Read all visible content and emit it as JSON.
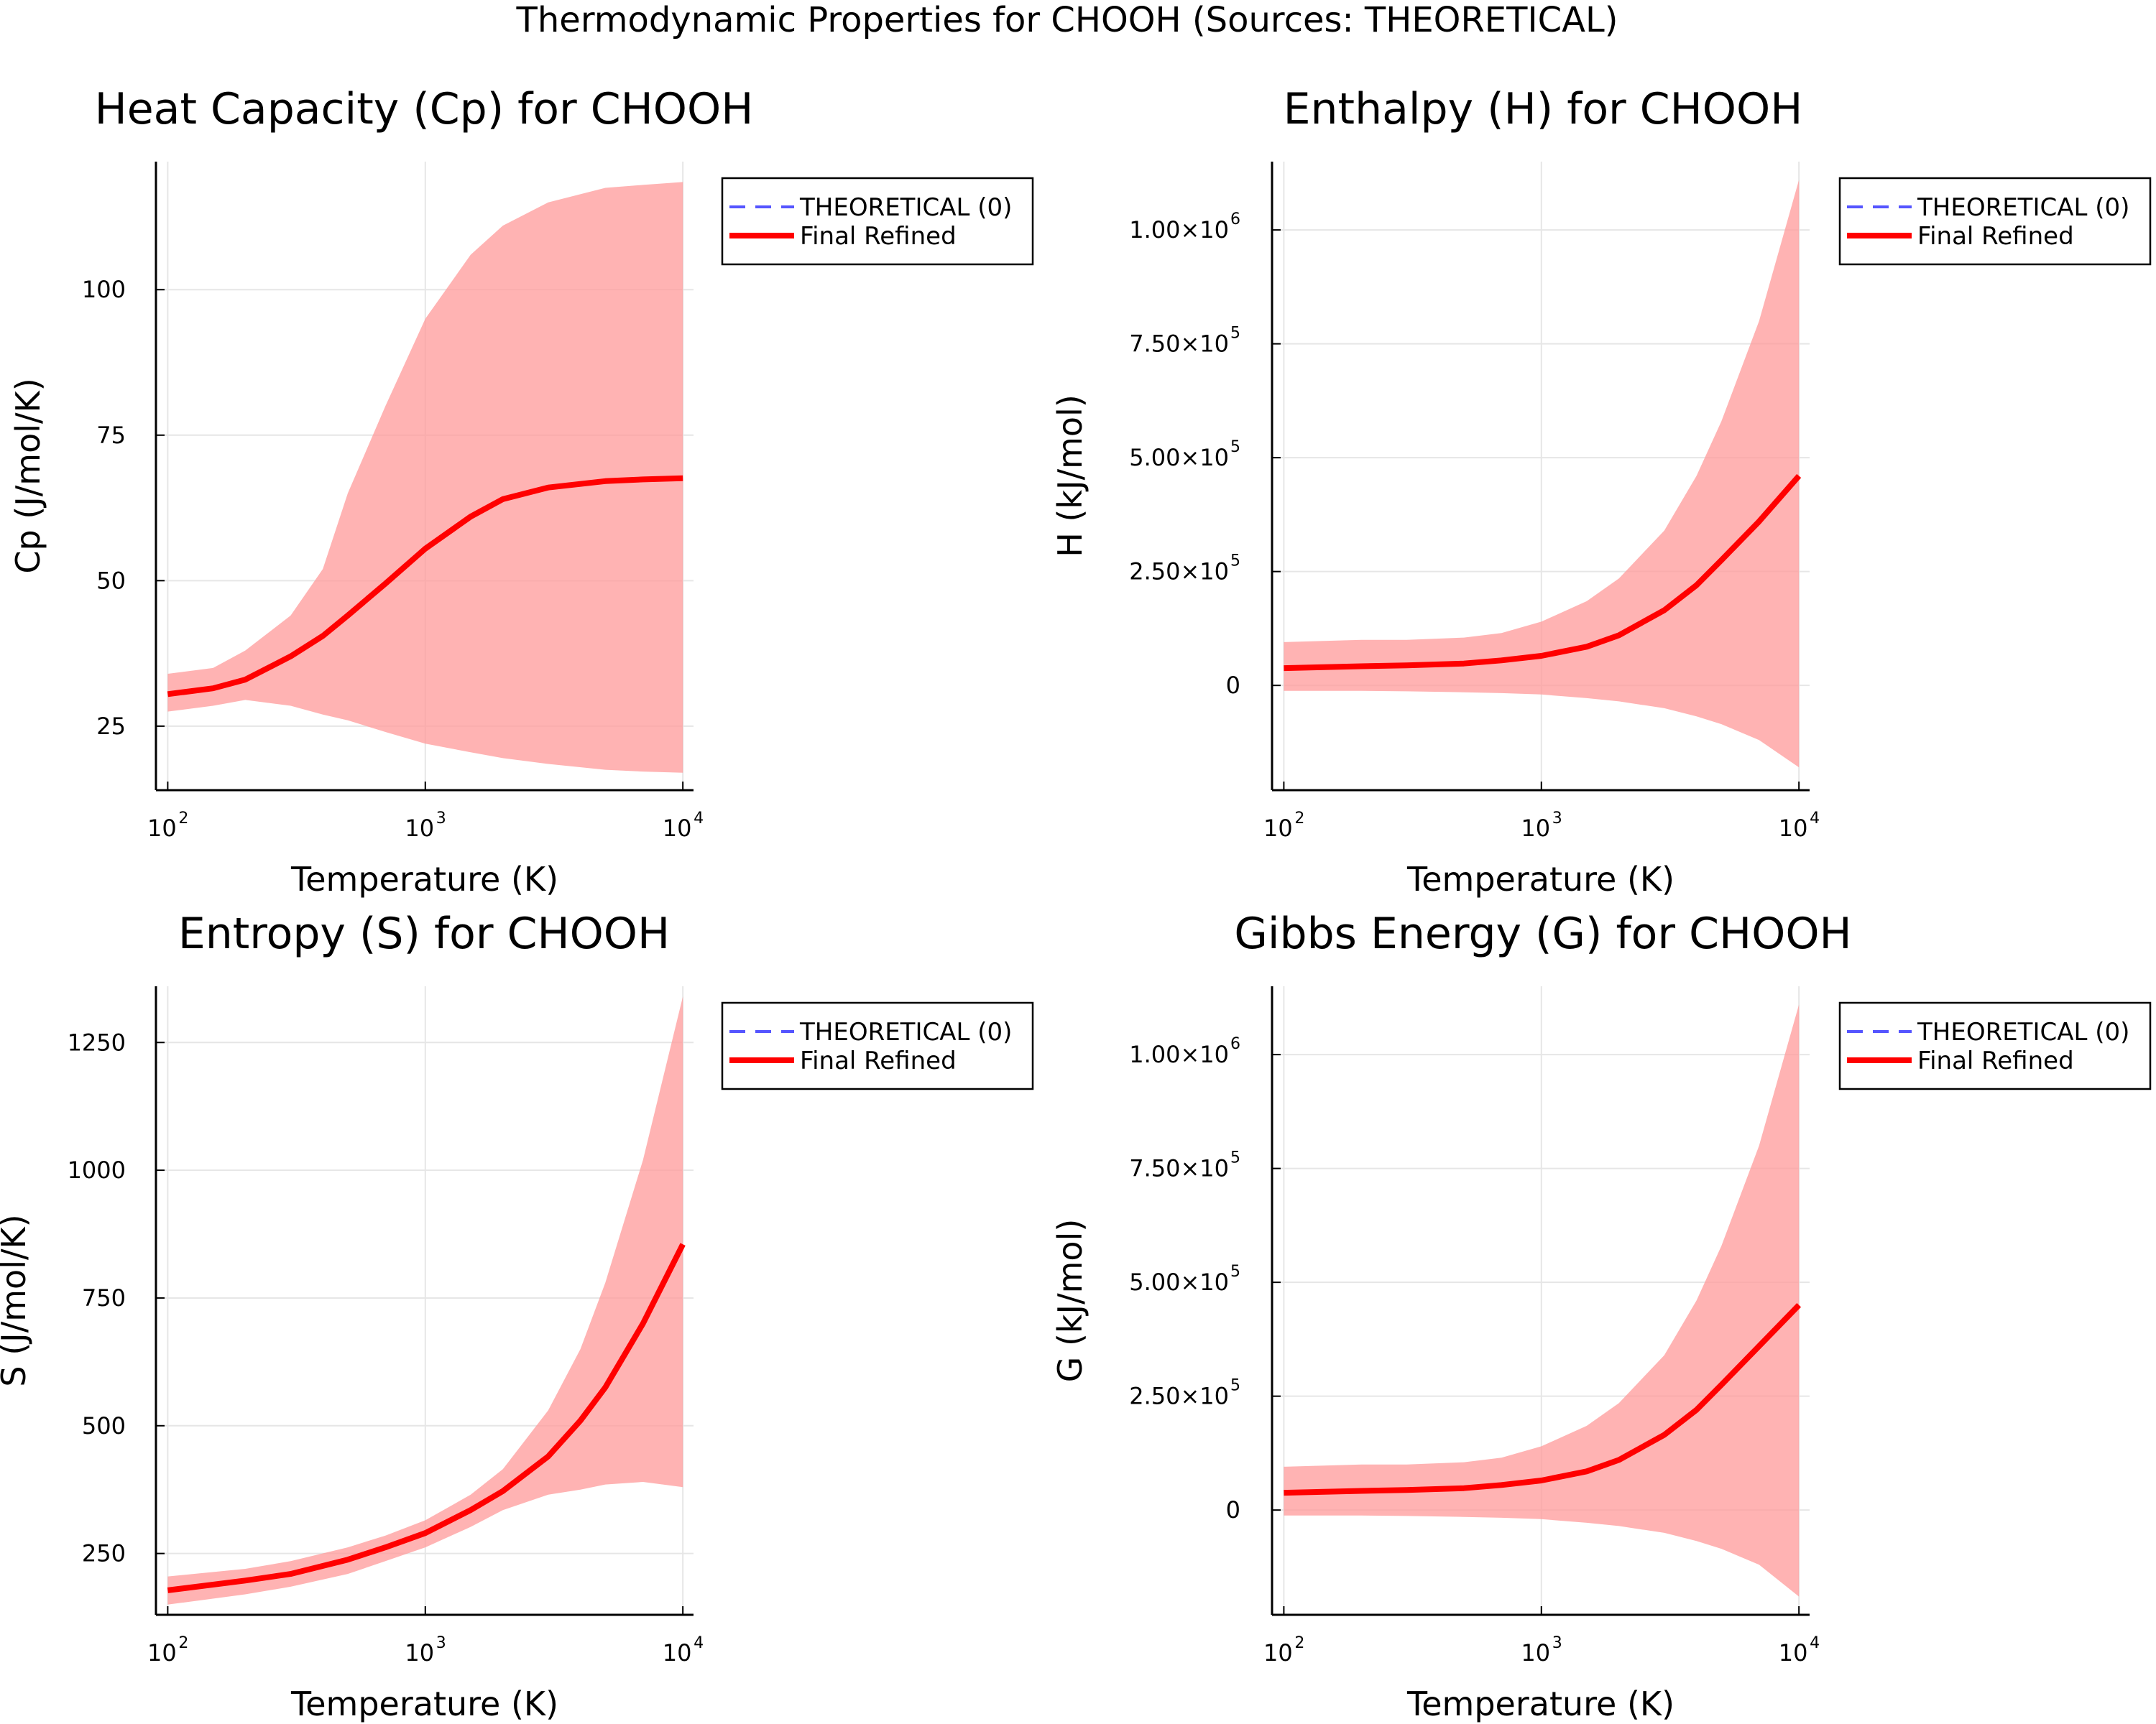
{
  "figure": {
    "suptitle": "Thermodynamic Properties for CHOOH (Sources: THEORETICAL)"
  },
  "colors": {
    "refined": "#ff0000",
    "band": "#ff9999",
    "theoretical": "#5555ff"
  },
  "chart_data": [
    {
      "type": "line",
      "title": "Heat Capacity (Cp) for CHOOH",
      "xlabel": "Temperature (K)",
      "ylabel": "Cp (J/mol/K)",
      "xscale": "log",
      "xlim": [
        90,
        11000
      ],
      "ylim": [
        14,
        122
      ],
      "xticks": [
        {
          "base": "10",
          "exp": "2",
          "value": 100
        },
        {
          "base": "10",
          "exp": "3",
          "value": 1000
        },
        {
          "base": "10",
          "exp": "4",
          "value": 10000
        }
      ],
      "yticks": [
        {
          "label": "25",
          "value": 25
        },
        {
          "label": "50",
          "value": 50
        },
        {
          "label": "75",
          "value": 75
        },
        {
          "label": "100",
          "value": 100
        }
      ],
      "grid": true,
      "legend_position": "outside-top-right",
      "legend": [
        {
          "name": "THEORETICAL (0)",
          "style": "dashed"
        },
        {
          "name": "Final Refined",
          "style": "solid"
        }
      ],
      "series": [
        {
          "name": "Final Refined",
          "x": [
            100,
            150,
            200,
            300,
            400,
            500,
            700,
            1000,
            1500,
            2000,
            3000,
            5000,
            7000,
            10000
          ],
          "y": [
            30.5,
            31.5,
            33,
            37,
            40.5,
            44,
            49.5,
            55.5,
            61,
            64,
            66,
            67.1,
            67.4,
            67.6
          ]
        },
        {
          "name": "band_upper",
          "x": [
            100,
            150,
            200,
            300,
            400,
            500,
            700,
            1000,
            1500,
            2000,
            3000,
            5000,
            7000,
            10000
          ],
          "y": [
            34,
            35,
            38,
            44,
            52,
            65,
            80,
            95,
            106,
            111,
            115,
            117.5,
            118,
            118.5
          ]
        },
        {
          "name": "band_lower",
          "x": [
            100,
            150,
            200,
            300,
            400,
            500,
            700,
            1000,
            1500,
            2000,
            3000,
            5000,
            7000,
            10000
          ],
          "y": [
            27.5,
            28.5,
            29.5,
            28.5,
            27,
            26,
            24,
            22,
            20.5,
            19.5,
            18.5,
            17.5,
            17.2,
            17
          ]
        }
      ]
    },
    {
      "type": "line",
      "title": "Enthalpy (H) for CHOOH",
      "xlabel": "Temperature (K)",
      "ylabel": "H (kJ/mol)",
      "xscale": "log",
      "xlim": [
        90,
        11000
      ],
      "ylim": [
        -230000,
        1150000
      ],
      "xticks": [
        {
          "base": "10",
          "exp": "2",
          "value": 100
        },
        {
          "base": "10",
          "exp": "3",
          "value": 1000
        },
        {
          "base": "10",
          "exp": "4",
          "value": 10000
        }
      ],
      "yticks": [
        {
          "label": "0",
          "value": 0
        },
        {
          "label": "2.50×10",
          "exp": "5",
          "value": 250000
        },
        {
          "label": "5.00×10",
          "exp": "5",
          "value": 500000
        },
        {
          "label": "7.50×10",
          "exp": "5",
          "value": 750000
        },
        {
          "label": "1.00×10",
          "exp": "6",
          "value": 1000000
        }
      ],
      "grid": true,
      "legend_position": "outside-top-right",
      "legend": [
        {
          "name": "THEORETICAL (0)",
          "style": "dashed"
        },
        {
          "name": "Final Refined",
          "style": "solid"
        }
      ],
      "series": [
        {
          "name": "Final Refined",
          "x": [
            100,
            200,
            300,
            500,
            700,
            1000,
            1500,
            2000,
            3000,
            4000,
            5000,
            7000,
            10000
          ],
          "y": [
            38000,
            42000,
            44000,
            48000,
            55000,
            65000,
            85000,
            110000,
            165000,
            220000,
            275000,
            360000,
            460000
          ]
        },
        {
          "name": "band_upper",
          "x": [
            100,
            200,
            300,
            500,
            700,
            1000,
            1500,
            2000,
            3000,
            4000,
            5000,
            7000,
            10000
          ],
          "y": [
            95000,
            100000,
            100000,
            105000,
            115000,
            140000,
            185000,
            235000,
            340000,
            460000,
            580000,
            800000,
            1110000
          ]
        },
        {
          "name": "band_lower",
          "x": [
            100,
            200,
            300,
            500,
            700,
            1000,
            1500,
            2000,
            3000,
            4000,
            5000,
            7000,
            10000
          ],
          "y": [
            -12000,
            -12000,
            -13000,
            -15000,
            -17000,
            -20000,
            -28000,
            -35000,
            -50000,
            -68000,
            -85000,
            -120000,
            -180000
          ]
        }
      ]
    },
    {
      "type": "line",
      "title": "Entropy (S) for CHOOH",
      "xlabel": "Temperature (K)",
      "ylabel": "S (J/mol/K)",
      "xscale": "log",
      "xlim": [
        90,
        11000
      ],
      "ylim": [
        130,
        1360
      ],
      "xticks": [
        {
          "base": "10",
          "exp": "2",
          "value": 100
        },
        {
          "base": "10",
          "exp": "3",
          "value": 1000
        },
        {
          "base": "10",
          "exp": "4",
          "value": 10000
        }
      ],
      "yticks": [
        {
          "label": "250",
          "value": 250
        },
        {
          "label": "500",
          "value": 500
        },
        {
          "label": "750",
          "value": 750
        },
        {
          "label": "1000",
          "value": 1000
        },
        {
          "label": "1250",
          "value": 1250
        }
      ],
      "grid": true,
      "legend_position": "outside-top-right",
      "legend": [
        {
          "name": "THEORETICAL (0)",
          "style": "dashed"
        },
        {
          "name": "Final Refined",
          "style": "solid"
        }
      ],
      "series": [
        {
          "name": "Final Refined",
          "x": [
            100,
            200,
            300,
            500,
            700,
            1000,
            1500,
            2000,
            3000,
            4000,
            5000,
            7000,
            10000
          ],
          "y": [
            178,
            197,
            210,
            238,
            262,
            290,
            335,
            372,
            440,
            510,
            575,
            700,
            855
          ]
        },
        {
          "name": "band_upper",
          "x": [
            100,
            200,
            300,
            500,
            700,
            1000,
            1500,
            2000,
            3000,
            4000,
            5000,
            7000,
            10000
          ],
          "y": [
            205,
            220,
            235,
            262,
            285,
            315,
            365,
            415,
            530,
            650,
            780,
            1020,
            1340
          ]
        },
        {
          "name": "band_lower",
          "x": [
            100,
            200,
            300,
            500,
            700,
            1000,
            1500,
            2000,
            3000,
            4000,
            5000,
            7000,
            10000
          ],
          "y": [
            150,
            170,
            185,
            210,
            235,
            262,
            302,
            335,
            365,
            375,
            385,
            390,
            380
          ]
        }
      ]
    },
    {
      "type": "line",
      "title": "Gibbs Energy (G) for CHOOH",
      "xlabel": "Temperature (K)",
      "ylabel": "G (kJ/mol)",
      "xscale": "log",
      "xlim": [
        90,
        11000
      ],
      "ylim": [
        -230000,
        1150000
      ],
      "xticks": [
        {
          "base": "10",
          "exp": "2",
          "value": 100
        },
        {
          "base": "10",
          "exp": "3",
          "value": 1000
        },
        {
          "base": "10",
          "exp": "4",
          "value": 10000
        }
      ],
      "yticks": [
        {
          "label": "0",
          "value": 0
        },
        {
          "label": "2.50×10",
          "exp": "5",
          "value": 250000
        },
        {
          "label": "5.00×10",
          "exp": "5",
          "value": 500000
        },
        {
          "label": "7.50×10",
          "exp": "5",
          "value": 750000
        },
        {
          "label": "1.00×10",
          "exp": "6",
          "value": 1000000
        }
      ],
      "grid": true,
      "legend_position": "outside-top-right",
      "legend": [
        {
          "name": "THEORETICAL (0)",
          "style": "dashed"
        },
        {
          "name": "Final Refined",
          "style": "solid"
        }
      ],
      "series": [
        {
          "name": "Final Refined",
          "x": [
            100,
            200,
            300,
            500,
            700,
            1000,
            1500,
            2000,
            3000,
            4000,
            5000,
            7000,
            10000
          ],
          "y": [
            38000,
            42000,
            44000,
            48000,
            55000,
            65000,
            85000,
            110000,
            165000,
            220000,
            275000,
            360000,
            450000
          ]
        },
        {
          "name": "band_upper",
          "x": [
            100,
            200,
            300,
            500,
            700,
            1000,
            1500,
            2000,
            3000,
            4000,
            5000,
            7000,
            10000
          ],
          "y": [
            95000,
            100000,
            100000,
            105000,
            115000,
            140000,
            185000,
            235000,
            340000,
            460000,
            580000,
            800000,
            1110000
          ]
        },
        {
          "name": "band_lower",
          "x": [
            100,
            200,
            300,
            500,
            700,
            1000,
            1500,
            2000,
            3000,
            4000,
            5000,
            7000,
            10000
          ],
          "y": [
            -12000,
            -12000,
            -13000,
            -15000,
            -17000,
            -20000,
            -28000,
            -35000,
            -50000,
            -68000,
            -85000,
            -120000,
            -190000
          ]
        }
      ]
    }
  ]
}
